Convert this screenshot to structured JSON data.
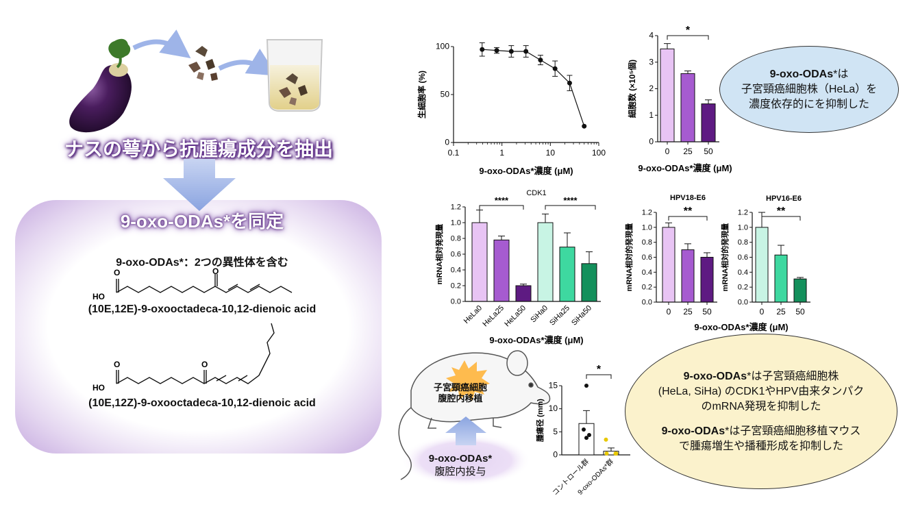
{
  "left": {
    "extract_title": "ナスの萼から抗腫瘍成分を抽出",
    "identify_title": "9-oxo-ODAs*を同定",
    "isomer_note": "9-oxo-ODAs*：2つの異性体を含む",
    "compound1": {
      "o_label": "O",
      "oh_label": "HO",
      "ketone_label": "O",
      "name": "(10E,12E)-9-oxooctadeca-10,12-dienoic acid"
    },
    "compound2": {
      "o_label": "O",
      "oh_label": "HO",
      "ketone_label": "O",
      "name": "(10E,12Z)-9-oxooctadeca-10,12-dienoic acid"
    }
  },
  "mouse": {
    "tumor_label_line1": "子宮頸癌細胞",
    "tumor_label_line2": "腹腔内移植",
    "injection_line1": "9-oxo-ODAs*",
    "injection_line2": "腹腔内投与"
  },
  "callouts": {
    "blue": {
      "bold": "9-oxo-ODAs",
      "star": "*",
      "line1_rest": "は",
      "line2": "子宮頸癌細胞株（HeLa）を",
      "line3": "濃度依存的にを抑制した"
    },
    "yellow": {
      "p1_bold": "9-oxo-ODAs",
      "p1_rest": "*は子宮頸癌細胞株",
      "p1_line2": "(HeLa, SiHa) のCDK1やHPV由来タンパク",
      "p1_line3": "のmRNA発現を抑制した",
      "p2_bold": "9-oxo-ODAs",
      "p2_rest": "*は子宮頸癌細胞移植マウス",
      "p2_line2": "で腫瘍増生や播種形成を抑制した"
    }
  },
  "chart_data": [
    {
      "id": "viability",
      "type": "line",
      "title": "",
      "xlabel": "9-oxo-ODAs*濃度 (μM)",
      "ylabel": "生細胞率 (%)",
      "xscale": "log",
      "xlim": [
        0.1,
        100
      ],
      "ylim": [
        0,
        100
      ],
      "xticks": [
        "0.1",
        "1",
        "10",
        "100"
      ],
      "yticks": [
        "0",
        "50",
        "100"
      ],
      "x": [
        0.39,
        0.78,
        1.56,
        3.13,
        6.25,
        12.5,
        25,
        50
      ],
      "y": [
        97,
        96,
        95,
        95,
        86,
        77,
        62,
        17
      ],
      "err": [
        7,
        3,
        6,
        6,
        5,
        8,
        8,
        0
      ]
    },
    {
      "id": "cellcount",
      "type": "bar",
      "title": "",
      "xlabel": "9-oxo-ODAs*濃度 (μM)",
      "ylabel": "細胞数 (×10⁵個)",
      "ylim": [
        0,
        4
      ],
      "yticks": [
        "0",
        "1",
        "2",
        "3",
        "4"
      ],
      "categories": [
        "0",
        "25",
        "50"
      ],
      "values": [
        3.5,
        2.57,
        1.43
      ],
      "err": [
        0.2,
        0.1,
        0.15
      ],
      "colors": [
        "#e8c4f4",
        "#a65bd0",
        "#5e1b82"
      ],
      "significance": "*"
    },
    {
      "id": "cdk1",
      "type": "bar",
      "title": "CDK1",
      "xlabel": "9-oxo-ODAs*濃度 (μM)",
      "ylabel": "mRNA相対発現量",
      "ylim": [
        0,
        1.2
      ],
      "yticks": [
        "0.0",
        "0.2",
        "0.4",
        "0.6",
        "0.8",
        "1.0",
        "1.2"
      ],
      "categories": [
        "HeLa0",
        "HeLa25",
        "HeLa50",
        "SiHa0",
        "SiHa25",
        "SiHa50"
      ],
      "values": [
        1.0,
        0.78,
        0.2,
        1.0,
        0.69,
        0.48
      ],
      "err": [
        0.16,
        0.05,
        0.02,
        0.11,
        0.18,
        0.15
      ],
      "colors": [
        "#e8c4f4",
        "#a65bd0",
        "#5e1b82",
        "#c8f4e4",
        "#3ed8a0",
        "#14905c"
      ],
      "significance": [
        "****",
        "****"
      ]
    },
    {
      "id": "hpv18",
      "type": "bar",
      "title": "HPV18-E6",
      "xlabel": "9-oxo-ODAs*濃度 (μM)",
      "ylabel": "mRNA相対的発現量",
      "ylim": [
        0,
        1.2
      ],
      "yticks": [
        "0.0",
        "0.2",
        "0.4",
        "0.6",
        "0.8",
        "1.0",
        "1.2"
      ],
      "categories": [
        "0",
        "25",
        "50"
      ],
      "values": [
        1.0,
        0.7,
        0.6
      ],
      "err": [
        0.06,
        0.08,
        0.06
      ],
      "colors": [
        "#e8c4f4",
        "#a65bd0",
        "#5e1b82"
      ],
      "significance": "**"
    },
    {
      "id": "hpv16",
      "type": "bar",
      "title": "HPV16-E6",
      "xlabel": "",
      "ylabel": "mRNA相対的発現量",
      "ylim": [
        0,
        1.2
      ],
      "yticks": [
        "0.0",
        "0.2",
        "0.4",
        "0.6",
        "0.8",
        "1.0",
        "1.2"
      ],
      "categories": [
        "0",
        "25",
        "50"
      ],
      "values": [
        1.0,
        0.63,
        0.31
      ],
      "err": [
        0.2,
        0.13,
        0.02
      ],
      "colors": [
        "#c8f4e4",
        "#3ed8a0",
        "#14905c"
      ],
      "significance": "**"
    },
    {
      "id": "tumor",
      "type": "scatter",
      "title": "",
      "xlabel": "",
      "ylabel": "腫瘍径 (mm)",
      "ylim": [
        0,
        15
      ],
      "yticks": [
        "0",
        "5",
        "10",
        "15"
      ],
      "categories": [
        "コントロール群",
        "9-oxo-ODAs*群"
      ],
      "means": [
        6.8,
        0.8
      ],
      "err": [
        2.8,
        0.7
      ],
      "points": [
        [
          15,
          5.5,
          4.3,
          3.7
        ],
        [
          3.3,
          0.3,
          0.3,
          0.3
        ]
      ],
      "point_colors": [
        "#111111",
        "#e8c800"
      ],
      "significance": "*"
    }
  ]
}
